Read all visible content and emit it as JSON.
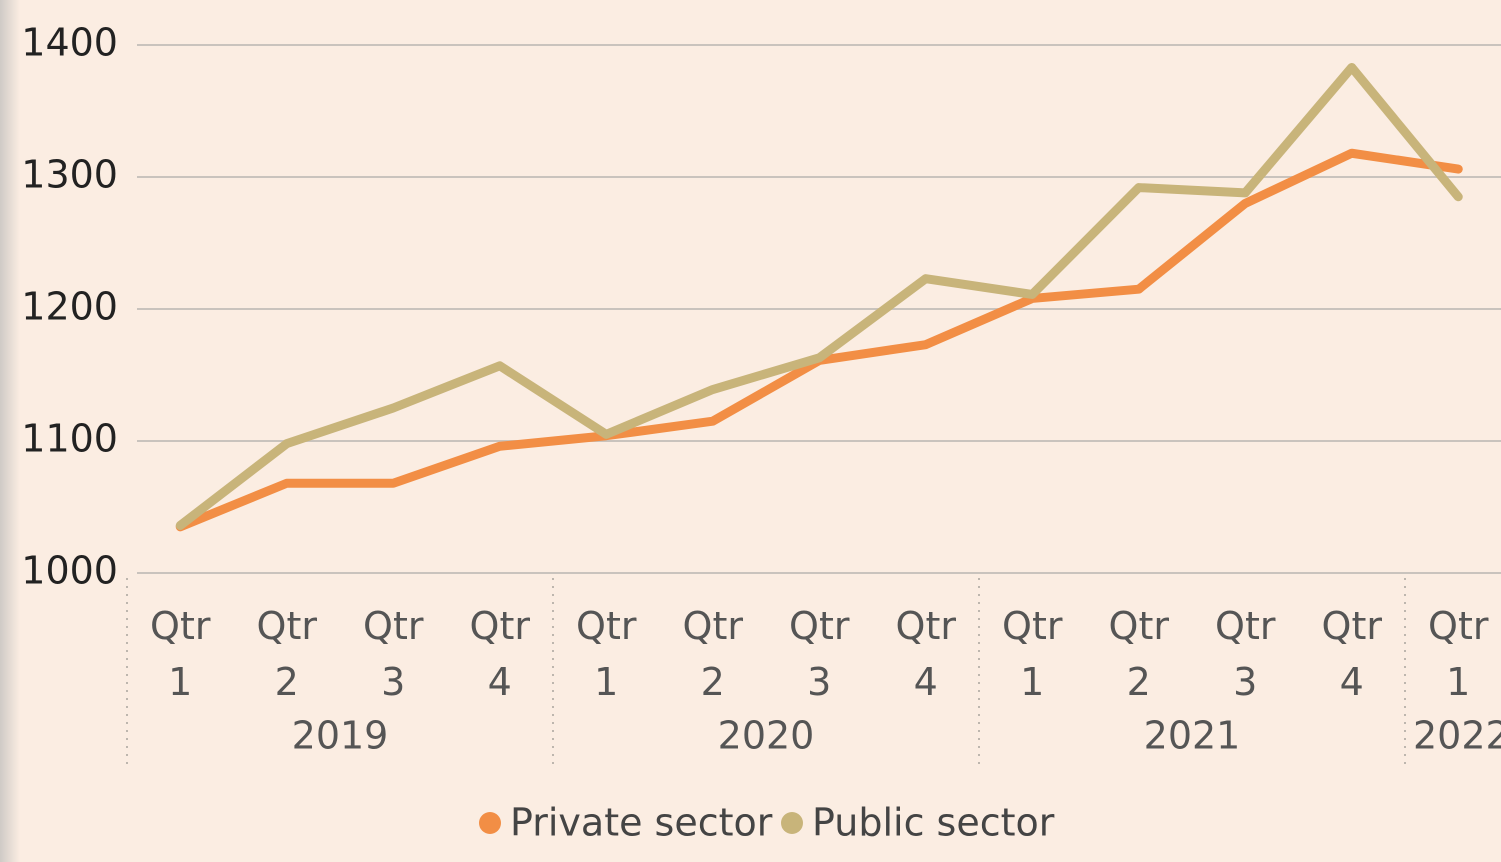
{
  "chart_data": {
    "type": "line",
    "categories": [
      "Qtr 1",
      "Qtr 2",
      "Qtr 3",
      "Qtr 4",
      "Qtr 1",
      "Qtr 2",
      "Qtr 3",
      "Qtr 4",
      "Qtr 1",
      "Qtr 2",
      "Qtr 3",
      "Qtr 4",
      "Qtr 1"
    ],
    "years": [
      "2019",
      "2019",
      "2019",
      "2019",
      "2020",
      "2020",
      "2020",
      "2020",
      "2021",
      "2021",
      "2021",
      "2021",
      "2022"
    ],
    "series": [
      {
        "name": "Private sector",
        "color": "#f28e45",
        "values": [
          1035,
          1068,
          1068,
          1096,
          1104,
          1115,
          1161,
          1173,
          1208,
          1215,
          1280,
          1318,
          1306
        ]
      },
      {
        "name": "Public sector",
        "color": "#c8b47a",
        "values": [
          1036,
          1098,
          1125,
          1157,
          1105,
          1139,
          1163,
          1223,
          1211,
          1292,
          1288,
          1383,
          1285
        ]
      }
    ],
    "ylim": [
      1000,
      1400
    ],
    "yticks": [
      1000,
      1100,
      1200,
      1300,
      1400
    ],
    "grid": true
  }
}
